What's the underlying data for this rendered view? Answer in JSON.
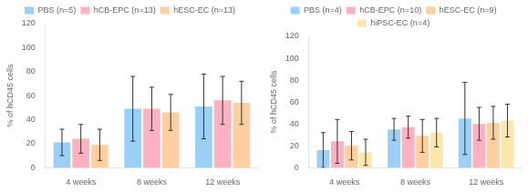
{
  "chart_data": [
    {
      "type": "bar",
      "y_label": "% of hCD45 cells",
      "categories": [
        "4 weeks",
        "8 weeks",
        "12 weeks"
      ],
      "series": [
        {
          "name": "PBS (n=5)",
          "values": [
            21,
            49,
            51
          ],
          "errors": [
            11,
            27,
            27
          ]
        },
        {
          "name": "hCB-EPC (n=13)",
          "values": [
            24,
            49,
            56
          ],
          "errors": [
            12,
            18,
            20
          ]
        },
        {
          "name": "hESC-EC (n=13)",
          "values": [
            19,
            46,
            54
          ],
          "errors": [
            13,
            15,
            18
          ]
        }
      ],
      "ylim": [
        0,
        120
      ],
      "yticks": [
        0,
        20,
        40,
        60,
        80,
        100,
        120
      ],
      "grid": false,
      "legend": "top"
    },
    {
      "type": "bar",
      "y_label": "% of hCD45 cells",
      "categories": [
        "4 weeks",
        "8 weeks",
        "12 weeks"
      ],
      "series": [
        {
          "name": "PBS (n=4)",
          "values": [
            16,
            35,
            45
          ],
          "errors": [
            16,
            10,
            33
          ]
        },
        {
          "name": "hCB-EPC (n=10)",
          "values": [
            24,
            37,
            40
          ],
          "errors": [
            20,
            10,
            15
          ]
        },
        {
          "name": "hESC-EC (n=9)",
          "values": [
            20,
            29,
            41
          ],
          "errors": [
            13,
            15,
            15
          ]
        },
        {
          "name": "hiPSC-EC (n=4)",
          "values": [
            14,
            32,
            43
          ],
          "errors": [
            12,
            13,
            15
          ]
        }
      ],
      "ylim": [
        0,
        120
      ],
      "yticks": [
        0,
        20,
        40,
        60,
        80,
        100,
        120
      ],
      "grid": false,
      "legend": "top"
    }
  ]
}
